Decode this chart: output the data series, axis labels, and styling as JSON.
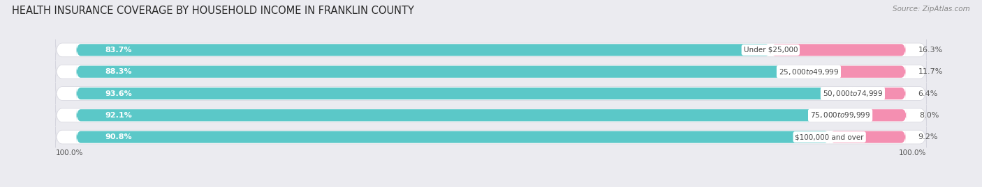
{
  "title": "HEALTH INSURANCE COVERAGE BY HOUSEHOLD INCOME IN FRANKLIN COUNTY",
  "source": "Source: ZipAtlas.com",
  "categories": [
    "Under $25,000",
    "$25,000 to $49,999",
    "$50,000 to $74,999",
    "$75,000 to $99,999",
    "$100,000 and over"
  ],
  "with_coverage": [
    83.7,
    88.3,
    93.6,
    92.1,
    90.8
  ],
  "without_coverage": [
    16.3,
    11.7,
    6.4,
    8.0,
    9.2
  ],
  "color_with": "#5bc8c8",
  "color_without": "#f48fb1",
  "background_color": "#ebebf0",
  "bar_background": "#e8e8ee",
  "bar_height": 0.55,
  "title_fontsize": 10.5,
  "label_fontsize": 8,
  "tick_fontsize": 7.5,
  "legend_fontsize": 8,
  "source_fontsize": 7.5
}
